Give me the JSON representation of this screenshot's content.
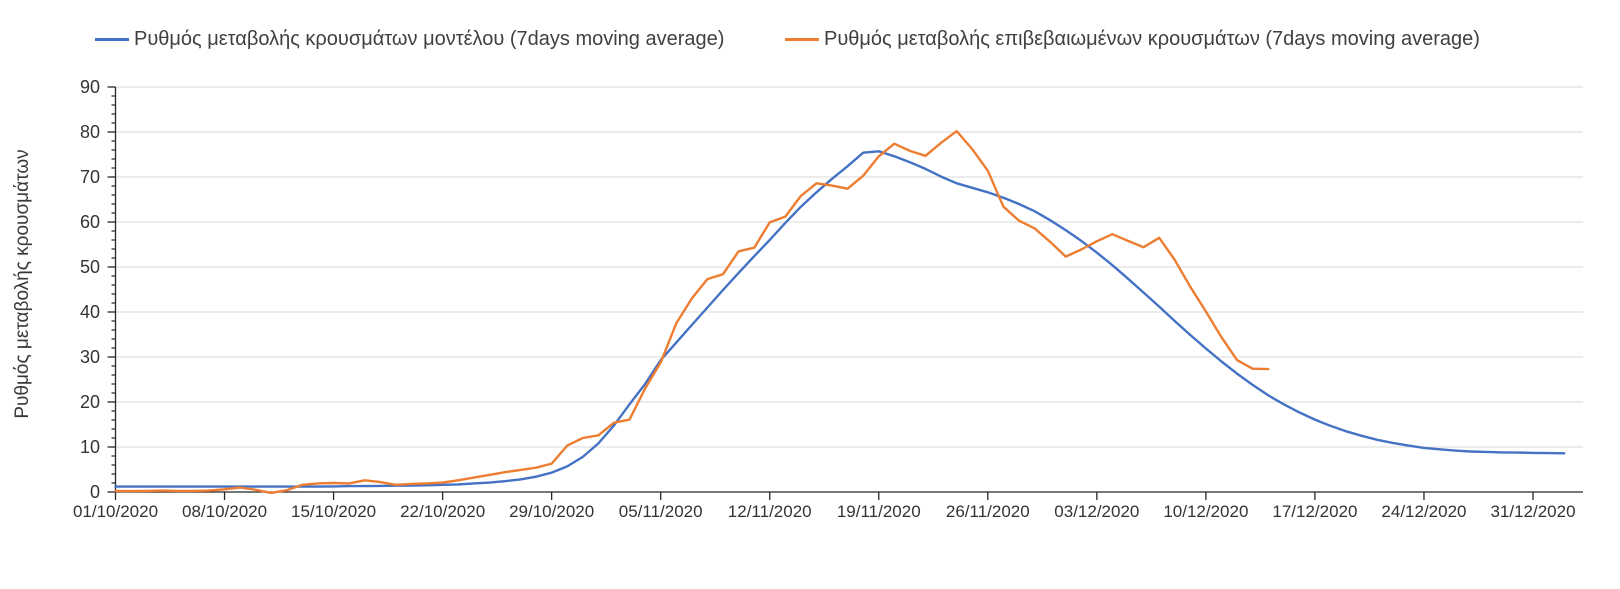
{
  "chart_data": {
    "type": "line",
    "title": "",
    "ylabel": "Ρυθμός μεταβολής κρουσμάτων",
    "xlabel": "",
    "ylim": [
      0,
      90
    ],
    "y_tick_step": 10,
    "y_minor_tick_step": 2,
    "y_ticks": [
      0,
      10,
      20,
      30,
      40,
      50,
      60,
      70,
      80,
      90
    ],
    "grid": "horizontal-major",
    "legend_position": "top",
    "x_unit": "days since 01/10/2020",
    "xlim_days": [
      0,
      94
    ],
    "x_tick_days": [
      0,
      7,
      14,
      21,
      28,
      35,
      42,
      49,
      56,
      63,
      70,
      77,
      84,
      91
    ],
    "x_tick_labels": [
      "01/10/2020",
      "08/10/2020",
      "15/10/2020",
      "22/10/2020",
      "29/10/2020",
      "05/11/2020",
      "12/11/2020",
      "19/11/2020",
      "26/11/2020",
      "03/12/2020",
      "10/12/2020",
      "17/12/2020",
      "24/12/2020",
      "31/12/2020"
    ],
    "series": [
      {
        "name": "Ρυθμός μεταβολής κρουσμάτων μοντέλου (7days moving average)",
        "color": "#4472C4",
        "start_date": "01/10/2020",
        "step_days": 1,
        "values": [
          1.2,
          1.2,
          1.2,
          1.2,
          1.2,
          1.2,
          1.2,
          1.2,
          1.2,
          1.2,
          1.2,
          1.2,
          1.2,
          1.2,
          1.25,
          1.3,
          1.3,
          1.35,
          1.4,
          1.45,
          1.5,
          1.6,
          1.7,
          1.9,
          2.1,
          2.4,
          2.8,
          3.4,
          4.3,
          5.7,
          7.8,
          10.8,
          14.8,
          19.5,
          24.0,
          29.3,
          33.2,
          37.1,
          41.0,
          44.9,
          48.7,
          52.4,
          56.0,
          59.8,
          63.4,
          66.6,
          69.6,
          72.4,
          75.4,
          75.7,
          74.6,
          73.3,
          71.8,
          70.1,
          68.6,
          67.6,
          66.6,
          65.4,
          64.0,
          62.4,
          60.4,
          58.2,
          55.8,
          53.2,
          50.4,
          47.4,
          44.3,
          41.2,
          38.0,
          34.9,
          31.9,
          29.0,
          26.3,
          23.8,
          21.5,
          19.5,
          17.7,
          16.1,
          14.7,
          13.5,
          12.5,
          11.6,
          10.9,
          10.3,
          9.8,
          9.5,
          9.2,
          9.0,
          8.9,
          8.8,
          8.75,
          8.7,
          8.65,
          8.6
        ]
      },
      {
        "name": "Ρυθμός μεταβολής επιβεβαιωμένων κρουσμάτων (7days moving average)",
        "color": "#ED7D31",
        "start_date": "01/10/2020",
        "step_days": 1,
        "values": [
          0.2,
          0.2,
          0.25,
          0.3,
          0.25,
          0.25,
          0.3,
          0.6,
          1.0,
          0.5,
          -0.2,
          0.4,
          1.6,
          1.9,
          2.0,
          1.9,
          2.6,
          2.2,
          1.6,
          1.8,
          1.9,
          2.1,
          2.6,
          3.2,
          3.8,
          4.4,
          4.9,
          5.4,
          6.3,
          10.3,
          12.0,
          12.6,
          15.4,
          16.1,
          23.0,
          28.8,
          37.5,
          43.0,
          47.3,
          48.4,
          53.5,
          54.3,
          59.9,
          61.2,
          65.8,
          68.6,
          68.1,
          67.4,
          70.3,
          74.6,
          77.4,
          75.8,
          74.7,
          77.6,
          80.2,
          76.2,
          71.4,
          63.4,
          60.3,
          58.6,
          55.6,
          52.3,
          53.9,
          55.7,
          57.3,
          55.8,
          54.4,
          56.5,
          51.6,
          45.6,
          40.1,
          34.4,
          29.3,
          27.4,
          27.3
        ]
      }
    ],
    "axis_color": "#262626",
    "gridline_color": "#D9D9D9",
    "tick_label_color": "#333333"
  }
}
